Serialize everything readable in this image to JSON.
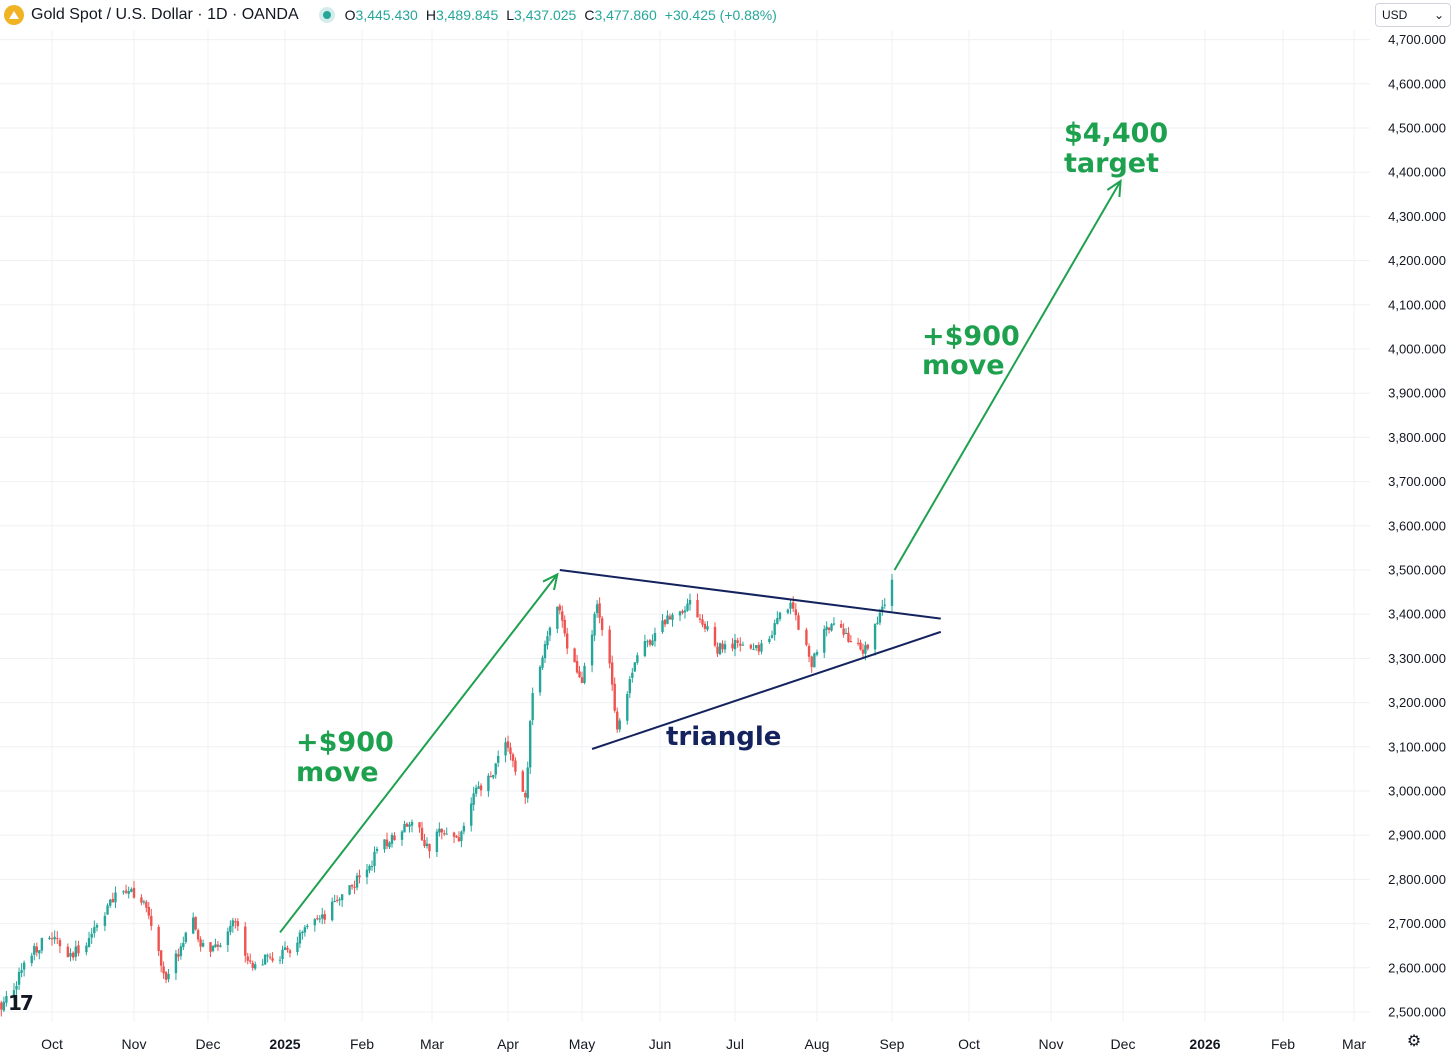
{
  "header": {
    "title": "Gold Spot / U.S. Dollar · 1D · OANDA",
    "o_label": "O",
    "o_value": "3,445.430",
    "h_label": "H",
    "h_value": "3,489.845",
    "l_label": "L",
    "l_value": "3,437.025",
    "c_label": "C",
    "c_value": "3,477.860",
    "change": "+30.425 (+0.88%)"
  },
  "currency": {
    "label": "USD",
    "chevron": "⌄"
  },
  "branding": {
    "logo_text": "17"
  },
  "settings_icon": "⚙",
  "colors": {
    "up": "#26a69a",
    "down": "#ef5350",
    "annotation_green": "#1ea14f",
    "annotation_dark": "#14235e"
  },
  "chart_data": {
    "type": "candlestick",
    "title": "Gold Spot / U.S. Dollar · 1D · OANDA",
    "ylim": [
      2480,
      4740
    ],
    "y_ticks": [
      "4,700.000",
      "4,600.000",
      "4,500.000",
      "4,400.000",
      "4,300.000",
      "4,200.000",
      "4,100.000",
      "4,000.000",
      "3,900.000",
      "3,800.000",
      "3,700.000",
      "3,600.000",
      "3,500.000",
      "3,400.000",
      "3,300.000",
      "3,200.000",
      "3,100.000",
      "3,000.000",
      "2,900.000",
      "2,800.000",
      "2,700.000",
      "2,600.000",
      "2,500.000"
    ],
    "x_ticks": [
      {
        "label": "Oct",
        "date": "2024-10-01",
        "bold": false
      },
      {
        "label": "Nov",
        "date": "2024-11-01",
        "bold": false
      },
      {
        "label": "Dec",
        "date": "2024-12-01",
        "bold": false
      },
      {
        "label": "2025",
        "date": "2025-01-01",
        "bold": true
      },
      {
        "label": "Feb",
        "date": "2025-02-01",
        "bold": false
      },
      {
        "label": "Mar",
        "date": "2025-03-01",
        "bold": false
      },
      {
        "label": "Apr",
        "date": "2025-04-01",
        "bold": false
      },
      {
        "label": "May",
        "date": "2025-05-01",
        "bold": false
      },
      {
        "label": "Jun",
        "date": "2025-06-01",
        "bold": false
      },
      {
        "label": "Jul",
        "date": "2025-07-01",
        "bold": false
      },
      {
        "label": "Aug",
        "date": "2025-08-01",
        "bold": false
      },
      {
        "label": "Sep",
        "date": "2025-09-01",
        "bold": false
      },
      {
        "label": "Oct",
        "date": "2025-10-01",
        "bold": false
      },
      {
        "label": "Nov",
        "date": "2025-11-01",
        "bold": false
      },
      {
        "label": "Dec",
        "date": "2025-12-01",
        "bold": false
      },
      {
        "label": "2026",
        "date": "2026-01-01",
        "bold": true
      },
      {
        "label": "Feb",
        "date": "2026-02-01",
        "bold": false
      },
      {
        "label": "Mar",
        "date": "2026-03-01",
        "bold": false
      }
    ],
    "closes": [
      {
        "date": "2024-09-09",
        "close": 2500
      },
      {
        "date": "2024-09-16",
        "close": 2560
      },
      {
        "date": "2024-09-23",
        "close": 2640
      },
      {
        "date": "2024-10-01",
        "close": 2670
      },
      {
        "date": "2024-10-08",
        "close": 2620
      },
      {
        "date": "2024-10-15",
        "close": 2670
      },
      {
        "date": "2024-10-22",
        "close": 2740
      },
      {
        "date": "2024-10-30",
        "close": 2785
      },
      {
        "date": "2024-11-05",
        "close": 2740
      },
      {
        "date": "2024-11-08",
        "close": 2700
      },
      {
        "date": "2024-11-14",
        "close": 2565
      },
      {
        "date": "2024-11-20",
        "close": 2650
      },
      {
        "date": "2024-11-25",
        "close": 2700
      },
      {
        "date": "2024-11-28",
        "close": 2650
      },
      {
        "date": "2024-12-05",
        "close": 2640
      },
      {
        "date": "2024-12-11",
        "close": 2715
      },
      {
        "date": "2024-12-18",
        "close": 2610
      },
      {
        "date": "2024-12-27",
        "close": 2620
      },
      {
        "date": "2025-01-03",
        "close": 2640
      },
      {
        "date": "2025-01-10",
        "close": 2690
      },
      {
        "date": "2025-01-17",
        "close": 2710
      },
      {
        "date": "2025-01-24",
        "close": 2770
      },
      {
        "date": "2025-01-31",
        "close": 2800
      },
      {
        "date": "2025-02-07",
        "close": 2860
      },
      {
        "date": "2025-02-14",
        "close": 2900
      },
      {
        "date": "2025-02-21",
        "close": 2940
      },
      {
        "date": "2025-02-28",
        "close": 2860
      },
      {
        "date": "2025-03-05",
        "close": 2920
      },
      {
        "date": "2025-03-12",
        "close": 2890
      },
      {
        "date": "2025-03-18",
        "close": 2990
      },
      {
        "date": "2025-03-25",
        "close": 3030
      },
      {
        "date": "2025-03-31",
        "close": 3120
      },
      {
        "date": "2025-04-04",
        "close": 3040
      },
      {
        "date": "2025-04-08",
        "close": 2980
      },
      {
        "date": "2025-04-11",
        "close": 3230
      },
      {
        "date": "2025-04-16",
        "close": 3330
      },
      {
        "date": "2025-04-22",
        "close": 3420
      },
      {
        "date": "2025-04-25",
        "close": 3330
      },
      {
        "date": "2025-05-01",
        "close": 3240
      },
      {
        "date": "2025-05-07",
        "close": 3420
      },
      {
        "date": "2025-05-13",
        "close": 3250
      },
      {
        "date": "2025-05-15",
        "close": 3140
      },
      {
        "date": "2025-05-22",
        "close": 3300
      },
      {
        "date": "2025-06-02",
        "close": 3380
      },
      {
        "date": "2025-06-13",
        "close": 3430
      },
      {
        "date": "2025-06-24",
        "close": 3320
      },
      {
        "date": "2025-07-01",
        "close": 3330
      },
      {
        "date": "2025-07-10",
        "close": 3320
      },
      {
        "date": "2025-07-22",
        "close": 3430
      },
      {
        "date": "2025-07-30",
        "close": 3290
      },
      {
        "date": "2025-08-07",
        "close": 3390
      },
      {
        "date": "2025-08-20",
        "close": 3310
      },
      {
        "date": "2025-08-28",
        "close": 3410
      },
      {
        "date": "2025-09-01",
        "close": 3478
      }
    ],
    "annotations": [
      {
        "text": [
          "+$900",
          "move"
        ],
        "color": "#1ea14f",
        "arrow_from": {
          "date": "2024-12-30",
          "price": 2680
        },
        "arrow_to": {
          "date": "2025-04-21",
          "price": 3490
        }
      },
      {
        "text": [
          "triangle"
        ],
        "color": "#14235e"
      },
      {
        "text": [
          "+$900",
          "move"
        ],
        "color": "#1ea14f",
        "arrow_from": {
          "date": "2025-09-02",
          "price": 3500
        },
        "arrow_to": {
          "date": "2025-11-30",
          "price": 4380
        }
      },
      {
        "text": [
          "$4,400",
          "target"
        ],
        "color": "#1ea14f"
      }
    ],
    "trendlines": [
      {
        "name": "upper",
        "from": {
          "date": "2025-04-22",
          "price": 3500
        },
        "to": {
          "date": "2025-09-20",
          "price": 3390
        }
      },
      {
        "name": "lower",
        "from": {
          "date": "2025-05-05",
          "price": 3095
        },
        "to": {
          "date": "2025-09-20",
          "price": 3360
        }
      }
    ]
  }
}
